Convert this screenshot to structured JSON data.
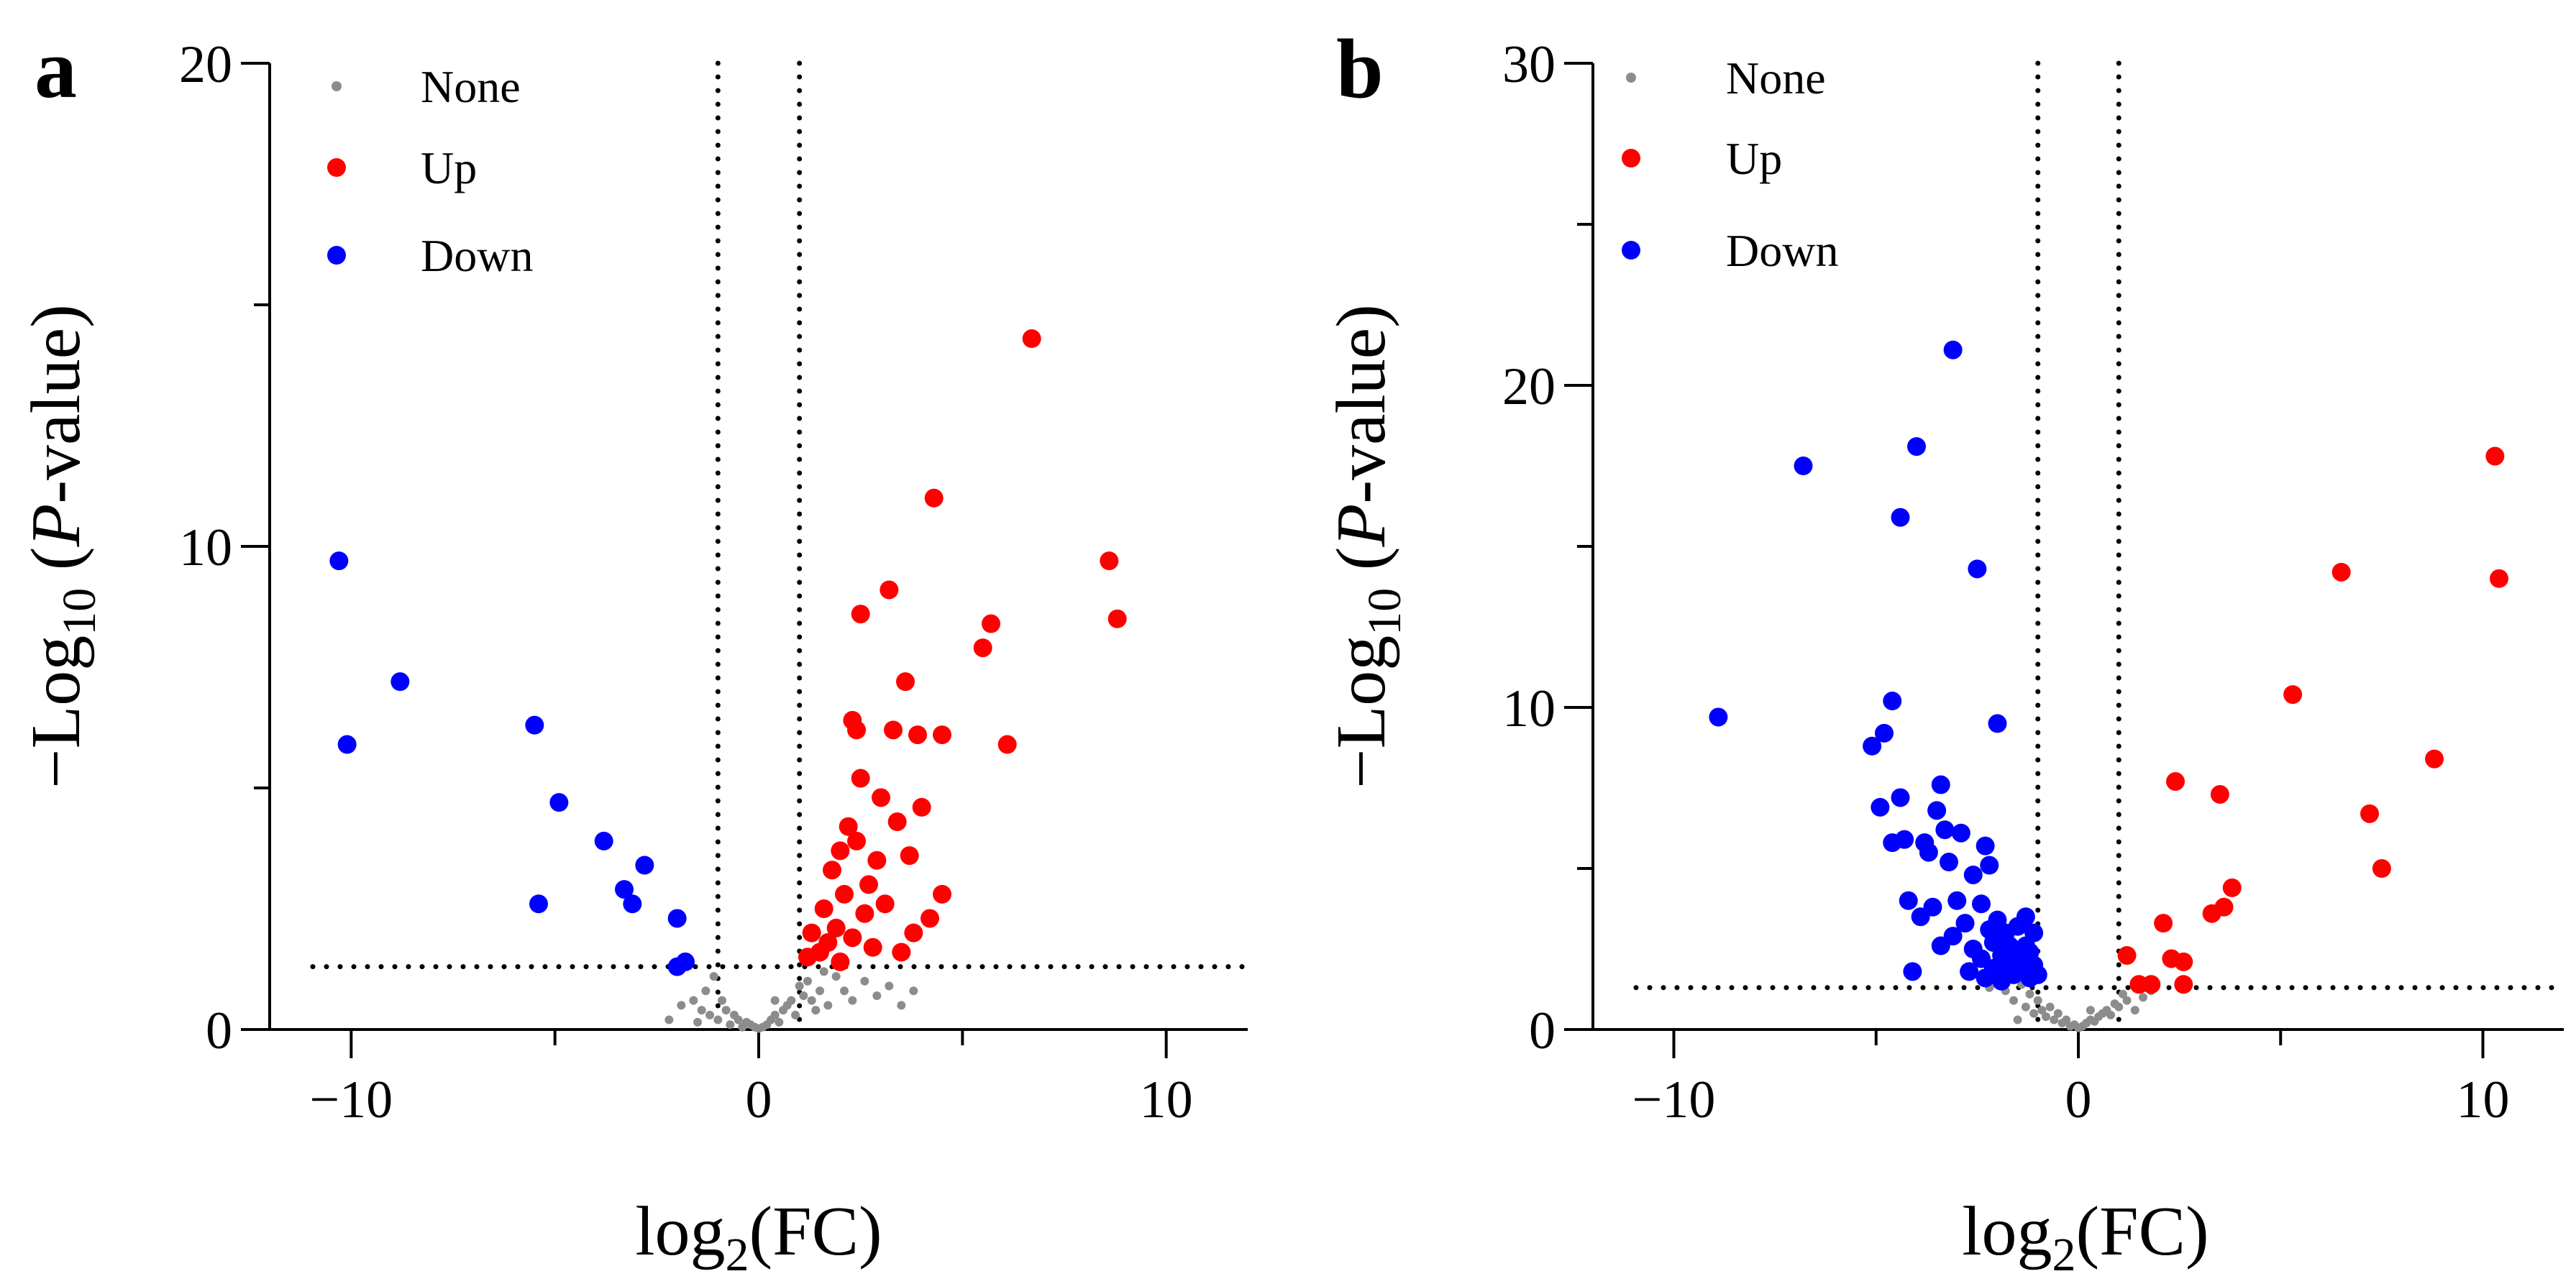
{
  "colors": {
    "none": "#8c8c8c",
    "up": "#ff0000",
    "down": "#0000ff",
    "axis": "#000000"
  },
  "chart_data": [
    {
      "panel": "a",
      "type": "scatter",
      "title": "",
      "xlabel": {
        "prefix": "log",
        "sub": "2",
        "suffix": "(FC)"
      },
      "ylabel": {
        "prefix": "−Log",
        "sub": "10",
        "open": " (",
        "italic": "P",
        "suffix": "-value)"
      },
      "xlim": [
        -12,
        12
      ],
      "ylim": [
        0,
        20
      ],
      "xticks": [
        -10,
        0,
        10
      ],
      "xtick_labels": [
        "−10",
        "0",
        "10"
      ],
      "yticks": [
        0,
        10,
        20
      ],
      "ytick_labels": [
        "0",
        "10",
        "20"
      ],
      "y_minor_step": 5,
      "grid": false,
      "thresholds": {
        "x": [
          -1,
          1
        ],
        "y": 1.3
      },
      "legend_position": "top-left",
      "series": [
        {
          "name": "None",
          "label": "None",
          "color_key": "none",
          "size": "small",
          "points": [
            [
              -1.9,
              0.5
            ],
            [
              -1.6,
              0.6
            ],
            [
              -1.4,
              0.4
            ],
            [
              -1.3,
              0.8
            ],
            [
              -1.2,
              0.3
            ],
            [
              -1.1,
              1.1
            ],
            [
              -1.0,
              0.2
            ],
            [
              -0.9,
              0.6
            ],
            [
              -0.8,
              0.4
            ],
            [
              -0.7,
              0.1
            ],
            [
              -0.6,
              0.3
            ],
            [
              -0.5,
              0.2
            ],
            [
              -0.4,
              0.05
            ],
            [
              -0.3,
              0.15
            ],
            [
              -0.2,
              0.1
            ],
            [
              -0.1,
              0.05
            ],
            [
              0.0,
              0.02
            ],
            [
              0.1,
              0.05
            ],
            [
              0.2,
              0.1
            ],
            [
              0.3,
              0.2
            ],
            [
              0.4,
              0.3
            ],
            [
              0.5,
              0.15
            ],
            [
              0.6,
              0.4
            ],
            [
              0.7,
              0.5
            ],
            [
              0.8,
              0.6
            ],
            [
              0.9,
              0.3
            ],
            [
              1.0,
              0.9
            ],
            [
              1.1,
              0.7
            ],
            [
              1.2,
              1.0
            ],
            [
              1.3,
              0.6
            ],
            [
              1.4,
              0.4
            ],
            [
              1.5,
              0.8
            ],
            [
              1.7,
              0.5
            ],
            [
              1.9,
              1.1
            ],
            [
              2.1,
              0.8
            ],
            [
              2.3,
              0.6
            ],
            [
              2.6,
              1.0
            ],
            [
              2.9,
              0.7
            ],
            [
              3.2,
              0.9
            ],
            [
              3.5,
              0.5
            ],
            [
              3.8,
              0.8
            ],
            [
              -1.5,
              0.15
            ],
            [
              -2.2,
              0.2
            ],
            [
              0.4,
              0.6
            ],
            [
              1.6,
              1.2
            ]
          ]
        },
        {
          "name": "Up",
          "label": "Up",
          "color_key": "up",
          "size": "large",
          "points": [
            [
              1.2,
              1.5
            ],
            [
              1.3,
              2.0
            ],
            [
              1.5,
              1.6
            ],
            [
              1.6,
              2.5
            ],
            [
              1.7,
              1.8
            ],
            [
              1.8,
              3.3
            ],
            [
              1.9,
              2.1
            ],
            [
              2.0,
              3.7
            ],
            [
              2.0,
              1.4
            ],
            [
              2.1,
              2.8
            ],
            [
              2.2,
              4.2
            ],
            [
              2.3,
              1.9
            ],
            [
              2.3,
              6.4
            ],
            [
              2.4,
              3.9
            ],
            [
              2.4,
              6.2
            ],
            [
              2.5,
              8.6
            ],
            [
              2.5,
              5.2
            ],
            [
              2.6,
              2.4
            ],
            [
              2.7,
              3.0
            ],
            [
              2.8,
              1.7
            ],
            [
              2.9,
              3.5
            ],
            [
              3.0,
              4.8
            ],
            [
              3.1,
              2.6
            ],
            [
              3.2,
              9.1
            ],
            [
              3.3,
              6.2
            ],
            [
              3.4,
              4.3
            ],
            [
              3.5,
              1.6
            ],
            [
              3.6,
              7.2
            ],
            [
              3.7,
              3.6
            ],
            [
              3.8,
              2.0
            ],
            [
              3.9,
              6.1
            ],
            [
              4.0,
              4.6
            ],
            [
              4.2,
              2.3
            ],
            [
              4.3,
              11.0
            ],
            [
              4.5,
              6.1
            ],
            [
              4.5,
              2.8
            ],
            [
              5.5,
              7.9
            ],
            [
              5.7,
              8.4
            ],
            [
              6.1,
              5.9
            ],
            [
              6.7,
              14.3
            ],
            [
              8.6,
              9.7
            ],
            [
              8.8,
              8.5
            ]
          ]
        },
        {
          "name": "Down",
          "label": "Down",
          "color_key": "down",
          "size": "large",
          "points": [
            [
              -10.3,
              9.7
            ],
            [
              -10.1,
              5.9
            ],
            [
              -8.8,
              7.2
            ],
            [
              -5.5,
              6.3
            ],
            [
              -5.4,
              2.6
            ],
            [
              -4.9,
              4.7
            ],
            [
              -3.8,
              3.9
            ],
            [
              -3.3,
              2.9
            ],
            [
              -3.1,
              2.6
            ],
            [
              -2.8,
              3.4
            ],
            [
              -2.0,
              2.3
            ],
            [
              -2.0,
              1.3
            ],
            [
              -1.8,
              1.4
            ]
          ]
        }
      ]
    },
    {
      "panel": "b",
      "type": "scatter",
      "title": "",
      "xlabel": {
        "prefix": "log",
        "sub": "2",
        "suffix": "(FC)"
      },
      "ylabel": {
        "prefix": "−Log",
        "sub": "10",
        "open": " (",
        "italic": "P",
        "suffix": "-value)"
      },
      "xlim": [
        -12,
        12
      ],
      "ylim": [
        0,
        30
      ],
      "xticks": [
        -10,
        0,
        10
      ],
      "xtick_labels": [
        "−10",
        "0",
        "10"
      ],
      "yticks": [
        0,
        10,
        20,
        30
      ],
      "ytick_labels": [
        "0",
        "10",
        "20",
        "30"
      ],
      "y_minor_step": 5,
      "grid": false,
      "thresholds": {
        "x": [
          -1,
          1
        ],
        "y": 1.3
      },
      "legend_position": "top-left",
      "series": [
        {
          "name": "None",
          "label": "None",
          "color_key": "none",
          "size": "small",
          "points": [
            [
              -1.8,
              1.2
            ],
            [
              -1.6,
              0.9
            ],
            [
              -1.4,
              1.4
            ],
            [
              -1.3,
              0.7
            ],
            [
              -1.2,
              1.1
            ],
            [
              -1.1,
              0.5
            ],
            [
              -1.0,
              0.9
            ],
            [
              -0.9,
              0.6
            ],
            [
              -0.8,
              0.4
            ],
            [
              -0.7,
              0.7
            ],
            [
              -0.6,
              0.3
            ],
            [
              -0.5,
              0.5
            ],
            [
              -0.4,
              0.2
            ],
            [
              -0.3,
              0.3
            ],
            [
              -0.2,
              0.1
            ],
            [
              -0.1,
              0.15
            ],
            [
              0.0,
              0.05
            ],
            [
              0.1,
              0.1
            ],
            [
              0.2,
              0.2
            ],
            [
              0.3,
              0.3
            ],
            [
              0.4,
              0.25
            ],
            [
              0.5,
              0.4
            ],
            [
              0.6,
              0.5
            ],
            [
              0.7,
              0.6
            ],
            [
              0.8,
              0.45
            ],
            [
              0.9,
              0.8
            ],
            [
              1.0,
              0.7
            ],
            [
              1.2,
              0.9
            ],
            [
              1.4,
              0.6
            ],
            [
              1.6,
              1.0
            ],
            [
              1.8,
              1.2
            ],
            [
              -2.2,
              1.3
            ],
            [
              -1.5,
              0.3
            ],
            [
              0.3,
              0.6
            ],
            [
              1.1,
              1.1
            ]
          ]
        },
        {
          "name": "Up",
          "label": "Up",
          "color_key": "up",
          "size": "large",
          "points": [
            [
              1.2,
              2.3
            ],
            [
              1.5,
              1.4
            ],
            [
              1.8,
              1.4
            ],
            [
              2.1,
              3.3
            ],
            [
              2.3,
              2.2
            ],
            [
              2.4,
              7.7
            ],
            [
              2.6,
              2.1
            ],
            [
              2.6,
              1.4
            ],
            [
              3.3,
              3.6
            ],
            [
              3.5,
              7.3
            ],
            [
              3.6,
              3.8
            ],
            [
              3.8,
              4.4
            ],
            [
              5.3,
              10.4
            ],
            [
              6.5,
              14.2
            ],
            [
              7.2,
              6.7
            ],
            [
              7.5,
              5.0
            ],
            [
              8.8,
              8.4
            ],
            [
              10.3,
              17.8
            ],
            [
              10.4,
              14.0
            ]
          ]
        },
        {
          "name": "Down",
          "label": "Down",
          "color_key": "down",
          "size": "large",
          "points": [
            [
              -8.9,
              9.7
            ],
            [
              -6.8,
              17.5
            ],
            [
              -5.1,
              8.8
            ],
            [
              -4.9,
              6.9
            ],
            [
              -4.8,
              9.2
            ],
            [
              -4.6,
              10.2
            ],
            [
              -4.6,
              5.8
            ],
            [
              -4.4,
              15.9
            ],
            [
              -4.4,
              7.2
            ],
            [
              -4.3,
              5.9
            ],
            [
              -4.2,
              4.0
            ],
            [
              -4.1,
              1.8
            ],
            [
              -4.0,
              18.1
            ],
            [
              -3.9,
              3.5
            ],
            [
              -3.8,
              5.8
            ],
            [
              -3.7,
              5.5
            ],
            [
              -3.6,
              3.8
            ],
            [
              -3.5,
              6.8
            ],
            [
              -3.4,
              7.6
            ],
            [
              -3.4,
              2.6
            ],
            [
              -3.3,
              6.2
            ],
            [
              -3.2,
              5.2
            ],
            [
              -3.1,
              21.1
            ],
            [
              -3.1,
              2.9
            ],
            [
              -3.0,
              4.0
            ],
            [
              -2.9,
              6.1
            ],
            [
              -2.8,
              3.3
            ],
            [
              -2.7,
              1.8
            ],
            [
              -2.6,
              2.5
            ],
            [
              -2.6,
              4.8
            ],
            [
              -2.5,
              14.3
            ],
            [
              -2.4,
              3.9
            ],
            [
              -2.4,
              2.2
            ],
            [
              -2.3,
              5.7
            ],
            [
              -2.3,
              1.6
            ],
            [
              -2.2,
              3.1
            ],
            [
              -2.2,
              5.1
            ],
            [
              -2.1,
              2.7
            ],
            [
              -2.1,
              1.9
            ],
            [
              -2.0,
              9.5
            ],
            [
              -2.0,
              3.4
            ],
            [
              -1.9,
              2.3
            ],
            [
              -1.9,
              1.5
            ],
            [
              -1.8,
              3.0
            ],
            [
              -1.8,
              2.0
            ],
            [
              -1.7,
              2.6
            ],
            [
              -1.6,
              1.7
            ],
            [
              -1.5,
              3.2
            ],
            [
              -1.5,
              2.2
            ],
            [
              -1.4,
              1.8
            ],
            [
              -1.3,
              3.5
            ],
            [
              -1.3,
              2.6
            ],
            [
              -1.2,
              1.6
            ],
            [
              -1.2,
              2.4
            ],
            [
              -1.1,
              3.0
            ],
            [
              -1.1,
              2.0
            ],
            [
              -1.0,
              1.7
            ]
          ]
        }
      ]
    }
  ]
}
